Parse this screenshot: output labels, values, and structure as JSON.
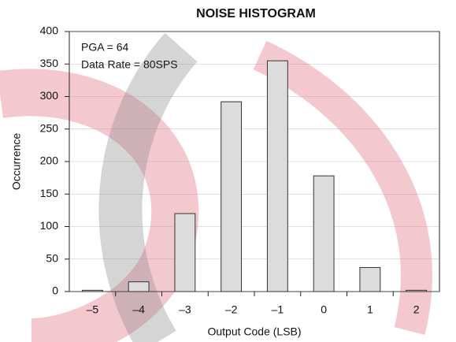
{
  "chart_data": {
    "type": "bar",
    "title": "NOISE HISTOGRAM",
    "x_label": "Output Code (LSB)",
    "y_label": "Occurrence",
    "annotations": [
      "PGA = 64",
      "Data Rate = 80SPS"
    ],
    "categories": [
      "–5",
      "–4",
      "–3",
      "–2",
      "–1",
      "0",
      "1",
      "2"
    ],
    "values": [
      2,
      15,
      120,
      292,
      355,
      178,
      37,
      2
    ],
    "color": "#dcdcdc",
    "edge_color": "#333333",
    "ylim": [
      0,
      400
    ],
    "yticks": [
      0,
      50,
      100,
      150,
      200,
      250,
      300,
      350,
      400
    ],
    "grid": true
  }
}
